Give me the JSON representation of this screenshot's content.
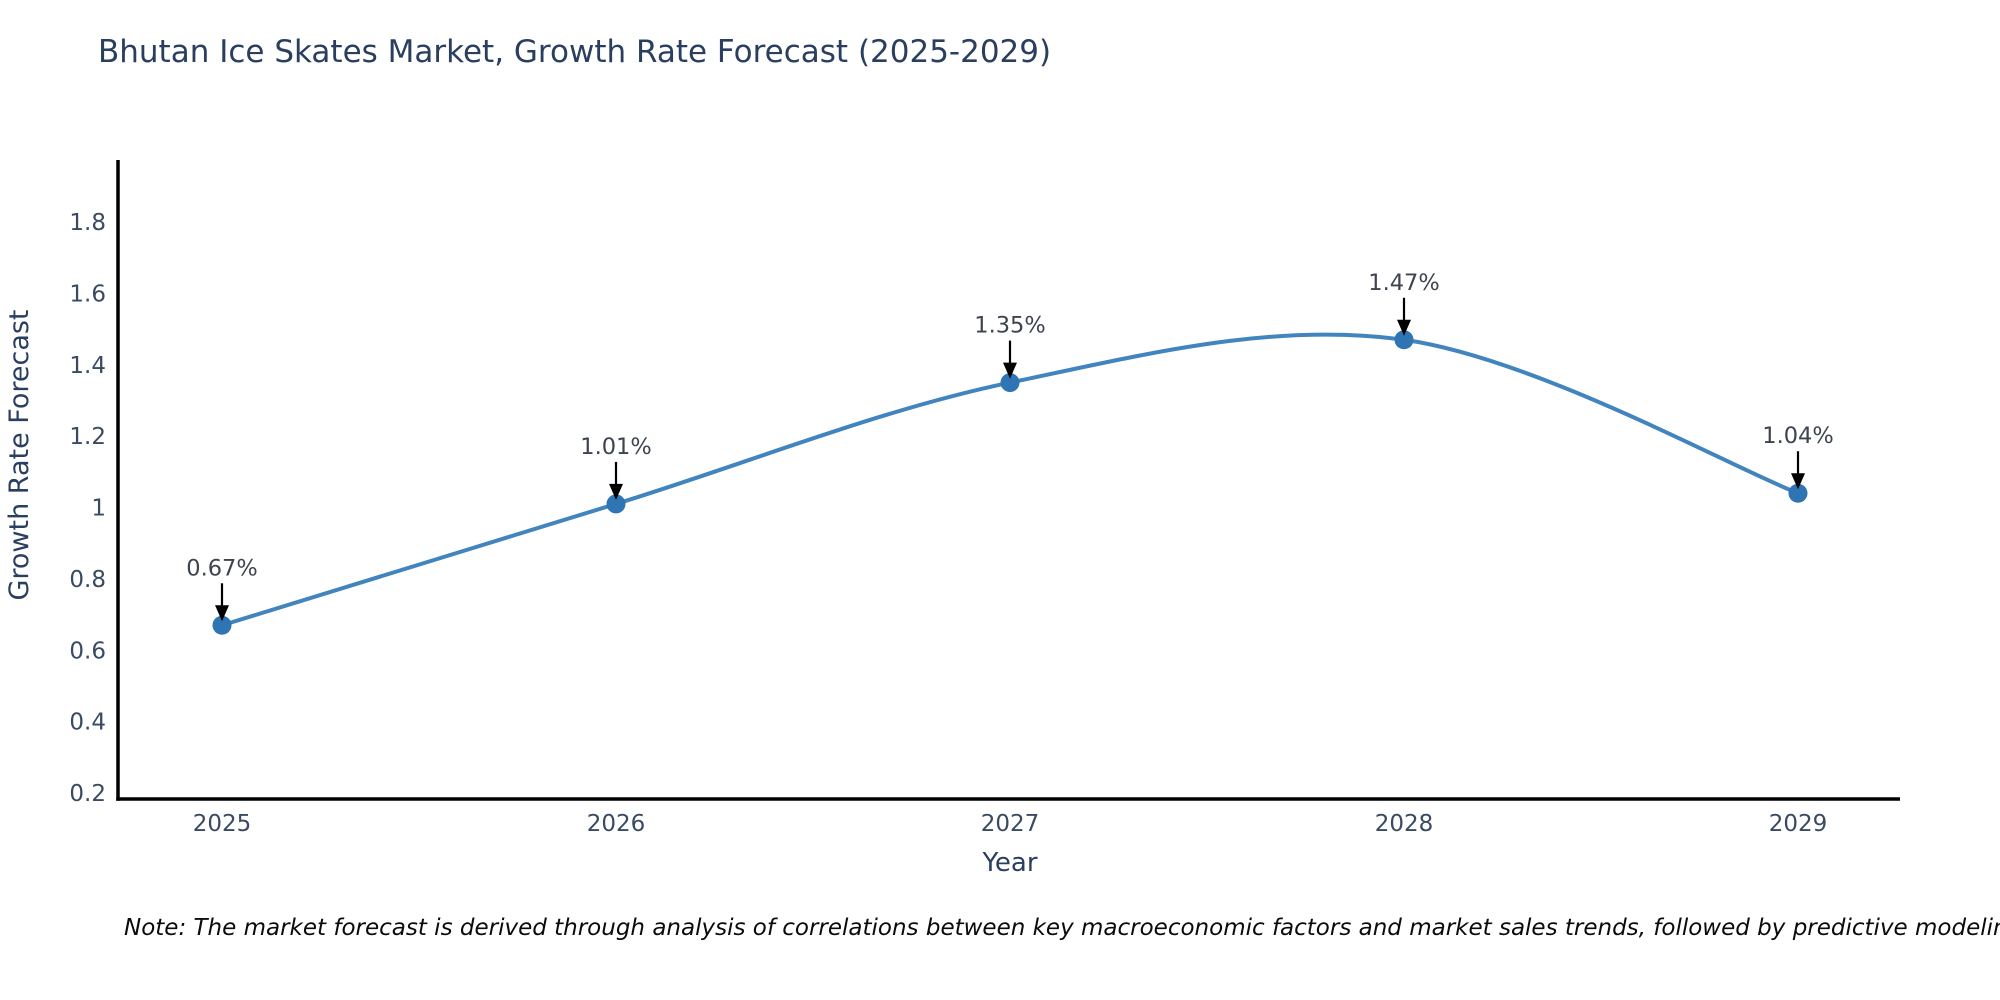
{
  "title": "Bhutan Ice Skates Market, Growth Rate Forecast (2025-2029)",
  "note": "Note: The market forecast is derived through analysis of correlations between key macroeconomic factors and market sales trends, followed by predictive modeling to project future sales",
  "colors": {
    "title_text": "#2a3f5f",
    "axis_line": "#000000",
    "tick_text": "#3b4a63",
    "annotation_text": "#3d4450",
    "annotation_arrow": "#000000",
    "line": "#4184be",
    "marker": "#2f74b3",
    "note_text": "#0b0b0b",
    "background": "#ffffff"
  },
  "chart_data": {
    "type": "line",
    "line_shape": "spline",
    "title": "Bhutan Ice Skates Market, Growth Rate Forecast (2025-2029)",
    "categories": [
      "2025",
      "2026",
      "2027",
      "2028",
      "2029"
    ],
    "values": [
      0.67,
      1.01,
      1.35,
      1.47,
      1.04
    ],
    "point_labels": [
      "0.67%",
      "1.01%",
      "1.35%",
      "1.47%",
      "1.04%"
    ],
    "series_name": "Growth Rate Forecast",
    "xlabel": "Year",
    "ylabel": "Growth Rate Forecast",
    "ylim": [
      0.18,
      1.99
    ],
    "y_ticks": [
      "0.2",
      "0.4",
      "0.6",
      "0.8",
      "1",
      "1.2",
      "1.4",
      "1.6",
      "1.8"
    ],
    "grid": false,
    "legend": "none",
    "markers": true,
    "annotations_with_arrows": true
  }
}
